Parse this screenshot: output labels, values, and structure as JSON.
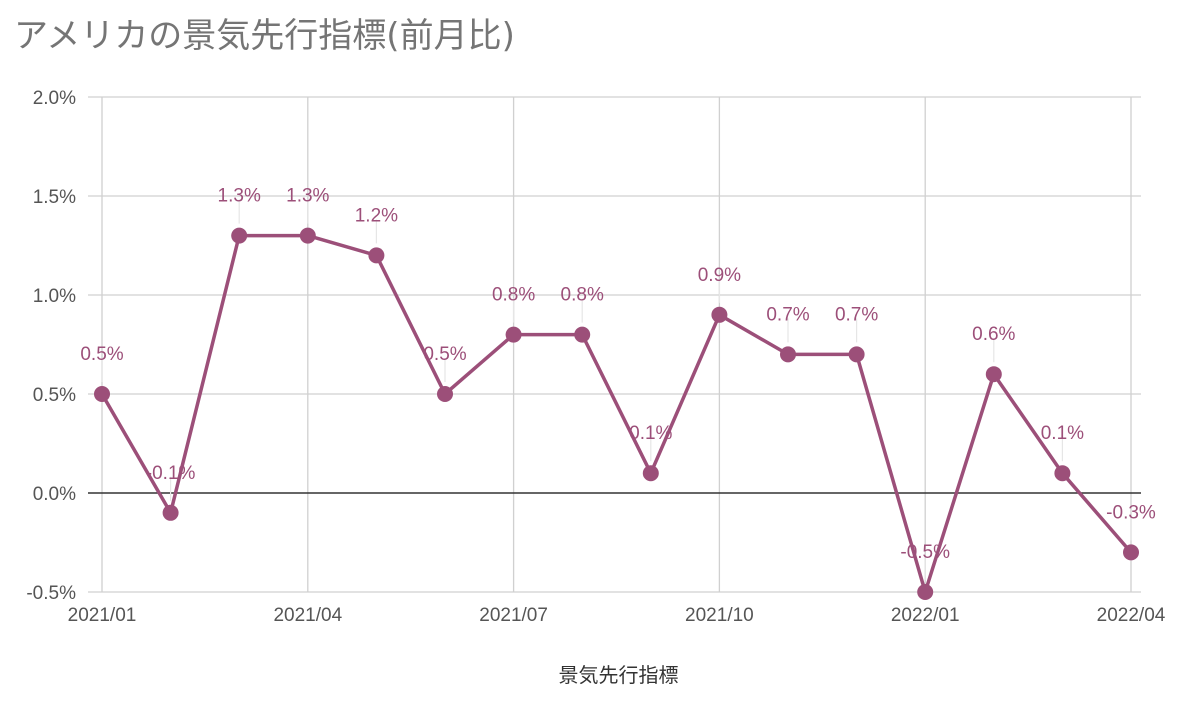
{
  "title": "アメリカの景気先行指標(前月比)",
  "chart_data": {
    "type": "line",
    "title": "アメリカの景気先行指標(前月比)",
    "xlabel": "景気先行指標",
    "ylabel": "",
    "ylim": [
      -0.5,
      2.0
    ],
    "y_ticks": [
      "2.0%",
      "1.5%",
      "1.0%",
      "0.5%",
      "0.0%",
      "-0.5%"
    ],
    "y_tick_values": [
      2.0,
      1.5,
      1.0,
      0.5,
      0.0,
      -0.5
    ],
    "x_ticks": [
      "2021/01",
      "2021/04",
      "2021/07",
      "2021/10",
      "2022/01",
      "2022/04"
    ],
    "x_tick_index": [
      0,
      3,
      6,
      9,
      12,
      15
    ],
    "grid": true,
    "legend": "none",
    "color": "#9c4f79",
    "series": [
      {
        "values": [
          0.5,
          -0.1,
          1.3,
          1.3,
          1.2,
          0.5,
          0.8,
          0.8,
          0.1,
          0.9,
          0.7,
          0.7,
          -0.5,
          0.6,
          0.1,
          -0.3
        ],
        "labels": [
          "0.5%",
          "-0.1%",
          "1.3%",
          "1.3%",
          "1.2%",
          "0.5%",
          "0.8%",
          "0.8%",
          "0.1%",
          "0.9%",
          "0.7%",
          "0.7%",
          "-0.5%",
          "0.6%",
          "0.1%",
          "-0.3%"
        ]
      }
    ]
  }
}
